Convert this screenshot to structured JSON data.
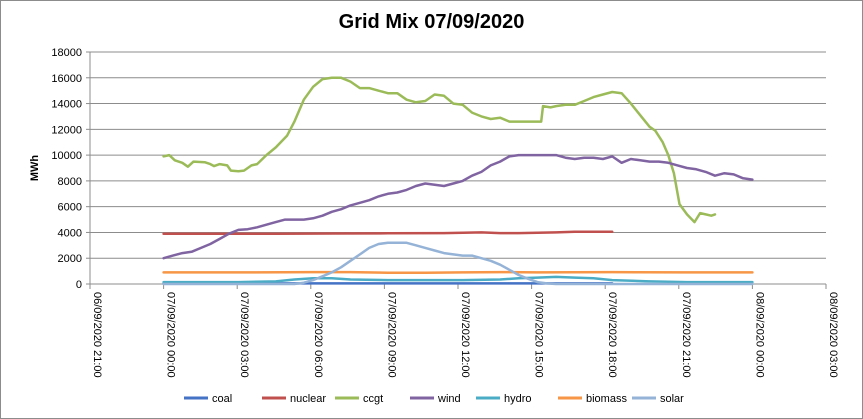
{
  "chart_data": {
    "type": "line",
    "title": "Grid Mix 07/09/2020",
    "ylabel": "MWh",
    "xlabel": "",
    "ylim": [
      0,
      18000
    ],
    "y_ticks": [
      0,
      2000,
      4000,
      6000,
      8000,
      10000,
      12000,
      14000,
      16000,
      18000
    ],
    "x_range_hours": [
      -3,
      27
    ],
    "x_tick_labels": [
      "06/09/2020 21:00",
      "07/09/2020 00:00",
      "07/09/2020 03:00",
      "07/09/2020 06:00",
      "07/09/2020 09:00",
      "07/09/2020 12:00",
      "07/09/2020 15:00",
      "07/09/2020 18:00",
      "07/09/2020 21:00",
      "08/09/2020 00:00",
      "08/09/2020 03:00"
    ],
    "grid": true,
    "legend_position": "bottom",
    "series": [
      {
        "name": "coal",
        "color": "#4472c4",
        "points": [
          [
            0,
            50
          ],
          [
            24,
            50
          ]
        ]
      },
      {
        "name": "nuclear",
        "color": "#c0504d",
        "points": [
          [
            0,
            3900
          ],
          [
            3,
            3900
          ],
          [
            6,
            3900
          ],
          [
            9,
            3920
          ],
          [
            12,
            3930
          ],
          [
            15,
            3950
          ],
          [
            17,
            4000
          ],
          [
            18,
            3950
          ],
          [
            19,
            3950
          ],
          [
            21,
            4000
          ],
          [
            22,
            4050
          ],
          [
            24,
            4050
          ]
        ]
      },
      {
        "name": "ccgt",
        "color": "#9bbb59",
        "points": [
          [
            0,
            9900
          ],
          [
            0.3,
            10000
          ],
          [
            0.6,
            9600
          ],
          [
            1.0,
            9400
          ],
          [
            1.3,
            9100
          ],
          [
            1.6,
            9500
          ],
          [
            2.2,
            9450
          ],
          [
            2.5,
            9300
          ],
          [
            2.7,
            9150
          ],
          [
            3.0,
            9300
          ],
          [
            3.4,
            9200
          ],
          [
            3.6,
            8800
          ],
          [
            4.0,
            8750
          ],
          [
            4.3,
            8800
          ],
          [
            4.7,
            9200
          ],
          [
            5.0,
            9300
          ],
          [
            5.5,
            10000
          ],
          [
            6.0,
            10600
          ],
          [
            6.6,
            11500
          ],
          [
            7.0,
            12600
          ],
          [
            7.5,
            14300
          ],
          [
            8.0,
            15300
          ],
          [
            8.5,
            15900
          ],
          [
            9.0,
            16000
          ],
          [
            9.5,
            16000
          ],
          [
            10.0,
            15700
          ],
          [
            10.5,
            15200
          ],
          [
            11.0,
            15200
          ],
          [
            11.5,
            15000
          ],
          [
            12.0,
            14800
          ],
          [
            12.5,
            14800
          ],
          [
            13.0,
            14300
          ],
          [
            13.5,
            14100
          ],
          [
            14.0,
            14200
          ],
          [
            14.5,
            14700
          ],
          [
            15.0,
            14600
          ],
          [
            15.5,
            14000
          ],
          [
            16.0,
            13900
          ],
          [
            16.5,
            13300
          ],
          [
            17.0,
            13000
          ],
          [
            17.5,
            12800
          ],
          [
            18.0,
            12900
          ],
          [
            18.5,
            12600
          ],
          [
            19.0,
            12600
          ],
          [
            19.5,
            12600
          ],
          [
            20.0,
            12600
          ],
          [
            20.2,
            12600
          ],
          [
            20.3,
            13800
          ],
          [
            20.7,
            13700
          ],
          [
            21.0,
            13800
          ],
          [
            21.5,
            13900
          ],
          [
            22.0,
            13900
          ],
          [
            22.5,
            14200
          ],
          [
            23.0,
            14500
          ],
          [
            23.5,
            14700
          ],
          [
            24.0,
            14900
          ],
          [
            24.5,
            14800
          ],
          [
            25.0,
            14000
          ],
          [
            25.5,
            13100
          ],
          [
            26.0,
            12200
          ],
          [
            26.3,
            11900
          ],
          [
            26.7,
            11000
          ],
          [
            27.0,
            10000
          ],
          [
            27.3,
            8600
          ],
          [
            27.6,
            6200
          ],
          [
            28.0,
            5400
          ],
          [
            28.4,
            4800
          ],
          [
            28.7,
            5500
          ],
          [
            29.0,
            5400
          ],
          [
            29.3,
            5300
          ],
          [
            29.5,
            5400
          ]
        ]
      },
      {
        "name": "wind",
        "color": "#8064a2",
        "points": [
          [
            0,
            2000
          ],
          [
            0.5,
            2200
          ],
          [
            1.0,
            2400
          ],
          [
            1.5,
            2500
          ],
          [
            2.0,
            2800
          ],
          [
            2.5,
            3100
          ],
          [
            3.0,
            3500
          ],
          [
            3.5,
            3900
          ],
          [
            4.0,
            4200
          ],
          [
            4.5,
            4250
          ],
          [
            5.0,
            4400
          ],
          [
            5.5,
            4600
          ],
          [
            6.0,
            4800
          ],
          [
            6.5,
            5000
          ],
          [
            7.0,
            5000
          ],
          [
            7.5,
            5000
          ],
          [
            8.0,
            5100
          ],
          [
            8.5,
            5300
          ],
          [
            9.0,
            5600
          ],
          [
            9.5,
            5800
          ],
          [
            10.0,
            6100
          ],
          [
            10.5,
            6300
          ],
          [
            11.0,
            6500
          ],
          [
            11.5,
            6800
          ],
          [
            12.0,
            7000
          ],
          [
            12.5,
            7100
          ],
          [
            13.0,
            7300
          ],
          [
            13.5,
            7600
          ],
          [
            14.0,
            7800
          ],
          [
            14.5,
            7700
          ],
          [
            15.0,
            7600
          ],
          [
            15.5,
            7800
          ],
          [
            16.0,
            8000
          ],
          [
            16.5,
            8400
          ],
          [
            17.0,
            8700
          ],
          [
            17.5,
            9200
          ],
          [
            18.0,
            9500
          ],
          [
            18.5,
            9900
          ],
          [
            19.0,
            10000
          ],
          [
            20.0,
            10000
          ],
          [
            21.0,
            10000
          ],
          [
            21.5,
            9800
          ],
          [
            22.0,
            9700
          ],
          [
            22.5,
            9800
          ],
          [
            23.0,
            9800
          ],
          [
            23.5,
            9700
          ],
          [
            24.0,
            9900
          ],
          [
            24.5,
            9400
          ],
          [
            25.0,
            9700
          ],
          [
            25.5,
            9600
          ],
          [
            26.0,
            9500
          ],
          [
            26.5,
            9500
          ],
          [
            27.0,
            9400
          ],
          [
            27.5,
            9200
          ],
          [
            28.0,
            9000
          ],
          [
            28.5,
            8900
          ],
          [
            29.0,
            8700
          ],
          [
            29.5,
            8400
          ],
          [
            30.0,
            8600
          ],
          [
            30.5,
            8500
          ],
          [
            31.0,
            8200
          ],
          [
            31.5,
            8100
          ]
        ]
      },
      {
        "name": "hydro",
        "color": "#4bacc6",
        "points": [
          [
            0,
            150
          ],
          [
            4,
            150
          ],
          [
            6,
            200
          ],
          [
            7,
            350
          ],
          [
            8,
            450
          ],
          [
            9,
            450
          ],
          [
            10,
            350
          ],
          [
            12,
            300
          ],
          [
            14,
            300
          ],
          [
            16,
            300
          ],
          [
            18,
            350
          ],
          [
            19,
            450
          ],
          [
            20,
            500
          ],
          [
            21,
            550
          ],
          [
            22,
            500
          ],
          [
            23,
            450
          ],
          [
            24,
            300
          ],
          [
            26,
            200
          ],
          [
            28,
            150
          ],
          [
            31.5,
            150
          ]
        ]
      },
      {
        "name": "biomass",
        "color": "#f79646",
        "points": [
          [
            0,
            900
          ],
          [
            4,
            900
          ],
          [
            8,
            920
          ],
          [
            10,
            920
          ],
          [
            12,
            880
          ],
          [
            14,
            880
          ],
          [
            16,
            900
          ],
          [
            18,
            920
          ],
          [
            20,
            900
          ],
          [
            24,
            920
          ],
          [
            28,
            900
          ],
          [
            31.5,
            900
          ]
        ]
      },
      {
        "name": "solar",
        "color": "#95b3d7",
        "points": [
          [
            0,
            0
          ],
          [
            7,
            0
          ],
          [
            7.5,
            100
          ],
          [
            8,
            300
          ],
          [
            8.5,
            600
          ],
          [
            9,
            900
          ],
          [
            9.5,
            1300
          ],
          [
            10,
            1800
          ],
          [
            10.5,
            2300
          ],
          [
            11,
            2800
          ],
          [
            11.5,
            3100
          ],
          [
            12,
            3200
          ],
          [
            12.5,
            3200
          ],
          [
            13,
            3200
          ],
          [
            13.5,
            3000
          ],
          [
            14,
            2800
          ],
          [
            14.5,
            2600
          ],
          [
            15,
            2400
          ],
          [
            15.5,
            2300
          ],
          [
            16,
            2200
          ],
          [
            16.5,
            2200
          ],
          [
            17,
            2000
          ],
          [
            17.5,
            1800
          ],
          [
            18,
            1500
          ],
          [
            18.5,
            1100
          ],
          [
            19,
            700
          ],
          [
            19.5,
            400
          ],
          [
            20,
            150
          ],
          [
            20.5,
            50
          ],
          [
            21,
            0
          ],
          [
            31.5,
            0
          ]
        ]
      }
    ]
  }
}
